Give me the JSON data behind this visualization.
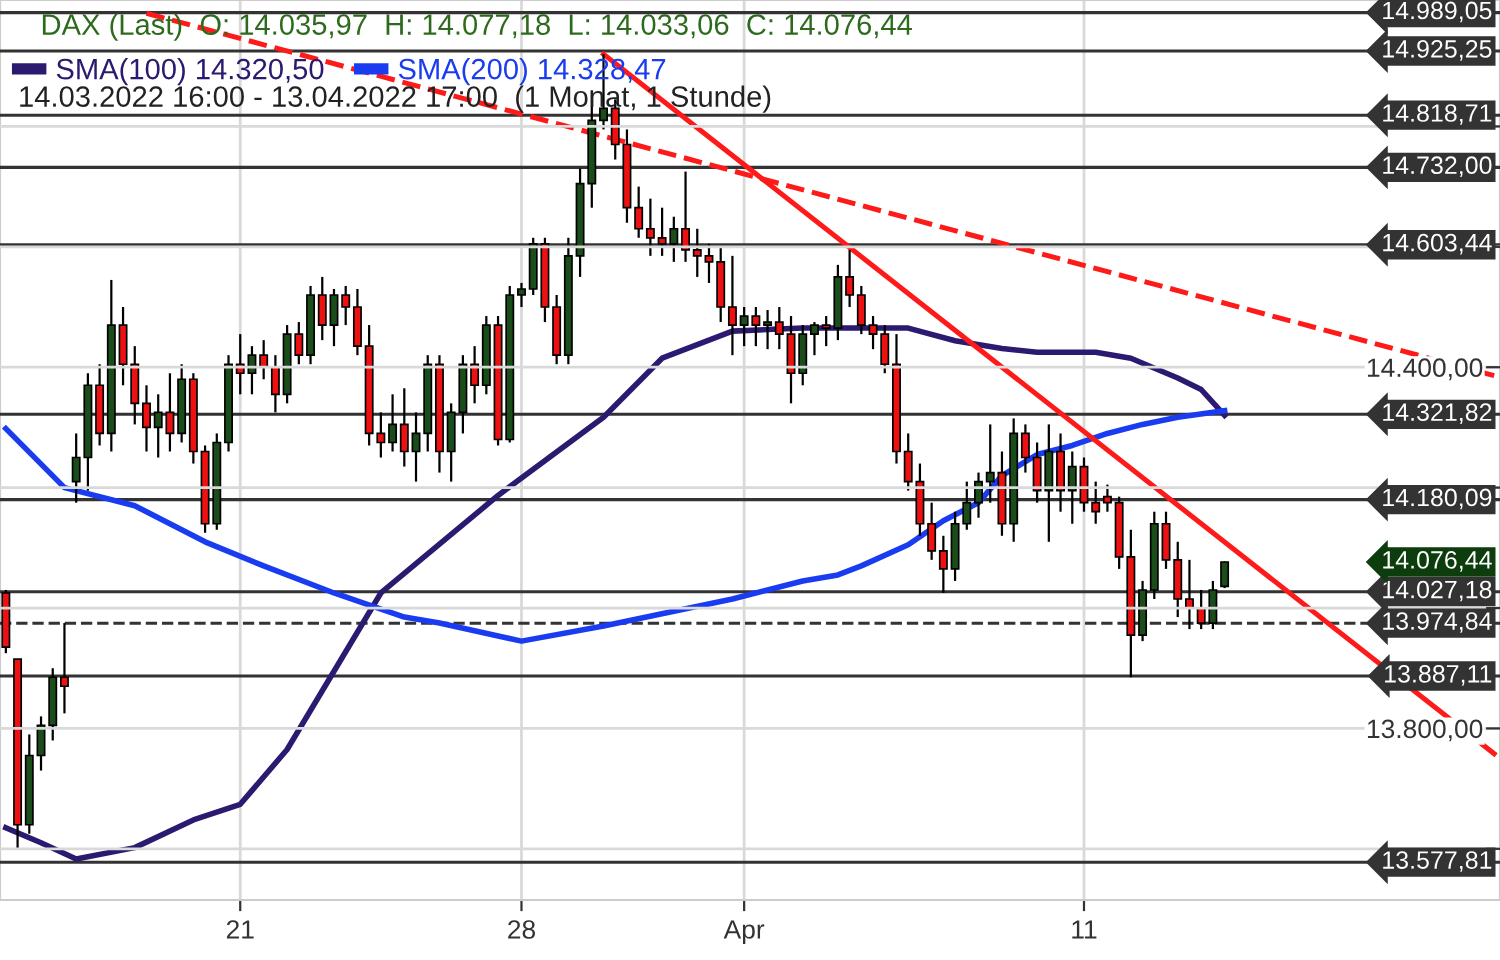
{
  "chart_data": {
    "type": "candlestick",
    "title": "DAX (Last)  O: 14.035,97  H: 14.077,18  L: 14.033,06  C: 14.076,44",
    "subtitle": "14.03.2022 16:00 - 13.04.2022 17:00  (1 Monat, 1 Stunde)",
    "colors": [
      "#ee1111",
      "#ee1111",
      "#1b4d1b",
      "#1b4d1b",
      "#1b4d1b",
      "#ee1111",
      "#1b4d1b",
      "#1b4d1b",
      "#ee1111",
      "#1b4d1b",
      "#ee1111",
      "#ee1111",
      "#ee1111",
      "#1b4d1b",
      "#ee1111",
      "#1b4d1b",
      "#ee1111",
      "#ee1111",
      "#1b4d1b",
      "#1b4d1b",
      "#ee1111",
      "#1b4d1b",
      "#ee1111",
      "#ee1111",
      "#1b4d1b",
      "#ee1111",
      "#1b4d1b",
      "#ee1111",
      "#1b4d1b",
      "#ee1111",
      "#ee1111",
      "#ee1111",
      "#ee1111",
      "#1b4d1b",
      "#ee1111",
      "#1b4d1b",
      "#1b4d1b",
      "#ee1111",
      "#1b4d1b",
      "#1b4d1b",
      "#ee1111",
      "#1b4d1b",
      "#ee1111",
      "#1b4d1b",
      "#1b4d1b",
      "#1b4d1b",
      "#ee1111",
      "#ee1111",
      "#1b4d1b",
      "#1b4d1b",
      "#1b4d1b",
      "#1b4d1b",
      "#ee1111",
      "#ee1111",
      "#ee1111",
      "#ee1111",
      "#ee1111",
      "#1b4d1b",
      "#ee1111",
      "#ee1111",
      "#ee1111",
      "#ee1111",
      "#ee1111",
      "#1b4d1b",
      "#ee1111",
      "#1b4d1b",
      "#ee1111",
      "#ee1111",
      "#1b4d1b",
      "#1b4d1b",
      "#ee1111",
      "#1b4d1b",
      "#ee1111",
      "#ee1111",
      "#ee1111",
      "#ee1111",
      "#ee1111",
      "#ee1111",
      "#ee1111",
      "#ee1111",
      "#ee1111",
      "#1b4d1b",
      "#1b4d1b",
      "#1b4d1b",
      "#1b4d1b",
      "#ee1111",
      "#1b4d1b",
      "#ee1111",
      "#ee1111",
      "#1b4d1b",
      "#ee1111",
      "#1b4d1b",
      "#ee1111",
      "#ee1111",
      "#ee1111",
      "#ee1111",
      "#ee1111",
      "#1b4d1b",
      "#1b4d1b",
      "#ee1111",
      "#ee1111",
      "#ee1111",
      "#ee1111",
      "#1b4d1b",
      "#1b4d1b",
      null,
      null,
      null,
      null,
      null,
      null,
      null,
      null,
      null,
      null,
      null,
      null,
      null,
      null,
      null,
      null,
      null,
      null,
      null,
      null,
      null,
      null,
      null
    ],
    "categories": [
      null,
      null,
      null,
      null,
      null,
      null,
      null,
      null,
      null,
      null,
      null,
      null,
      null,
      null,
      null,
      null,
      null,
      null,
      null,
      null,
      "21",
      null,
      null,
      null,
      null,
      null,
      null,
      null,
      null,
      null,
      null,
      null,
      null,
      null,
      null,
      null,
      null,
      null,
      null,
      null,
      null,
      null,
      null,
      null,
      "28",
      null,
      null,
      null,
      null,
      null,
      null,
      null,
      null,
      null,
      null,
      null,
      null,
      null,
      null,
      null,
      null,
      null,
      null,
      "Apr",
      null,
      null,
      null,
      null,
      null,
      null,
      null,
      null,
      null,
      null,
      null,
      null,
      null,
      null,
      null,
      null,
      null,
      null,
      null,
      null,
      null,
      null,
      null,
      null,
      null,
      null,
      null,
      null,
      "11",
      null,
      null,
      null,
      null,
      null,
      null,
      null,
      null,
      null,
      null,
      null,
      null,
      null,
      null,
      null,
      null,
      null,
      null,
      null,
      null,
      null,
      null,
      null,
      null,
      null,
      null,
      null,
      null,
      null,
      null,
      null,
      null,
      null,
      null,
      null
    ],
    "ohlc": [
      [
        14025,
        14030,
        13925,
        13935
      ],
      [
        13915,
        13915,
        13600,
        13640
      ],
      [
        13640,
        13790,
        13625,
        13755
      ],
      [
        13755,
        13820,
        13730,
        13805
      ],
      [
        13805,
        13900,
        13780,
        13885
      ],
      [
        13885,
        13975,
        13825,
        13870
      ],
      [
        14210,
        14290,
        14175,
        14250
      ],
      [
        14250,
        14390,
        14195,
        14370
      ],
      [
        14370,
        14405,
        14270,
        14290
      ],
      [
        14290,
        14545,
        14260,
        14470
      ],
      [
        14470,
        14500,
        14370,
        14405
      ],
      [
        14405,
        14435,
        14305,
        14340
      ],
      [
        14340,
        14370,
        14260,
        14300
      ],
      [
        14300,
        14355,
        14250,
        14325
      ],
      [
        14325,
        14390,
        14260,
        14290
      ],
      [
        14290,
        14405,
        14275,
        14380
      ],
      [
        14380,
        14390,
        14240,
        14260
      ],
      [
        14260,
        14270,
        14125,
        14140
      ],
      [
        14140,
        14290,
        14130,
        14275
      ],
      [
        14275,
        14420,
        14260,
        14405
      ],
      [
        14405,
        14455,
        14355,
        14390
      ],
      [
        14390,
        14435,
        14355,
        14420
      ],
      [
        14420,
        14445,
        14380,
        14400
      ],
      [
        14400,
        14420,
        14325,
        14355
      ],
      [
        14355,
        14470,
        14340,
        14455
      ],
      [
        14455,
        14475,
        14405,
        14420
      ],
      [
        14420,
        14535,
        14405,
        14520
      ],
      [
        14520,
        14550,
        14445,
        14470
      ],
      [
        14470,
        14530,
        14435,
        14520
      ],
      [
        14520,
        14535,
        14470,
        14500
      ],
      [
        14500,
        14530,
        14420,
        14435
      ],
      [
        14435,
        14470,
        14270,
        14290
      ],
      [
        14290,
        14325,
        14250,
        14275
      ],
      [
        14275,
        14355,
        14260,
        14305
      ],
      [
        14305,
        14365,
        14235,
        14260
      ],
      [
        14260,
        14325,
        14210,
        14290
      ],
      [
        14290,
        14420,
        14260,
        14405
      ],
      [
        14405,
        14420,
        14225,
        14260
      ],
      [
        14260,
        14340,
        14210,
        14325
      ],
      [
        14325,
        14420,
        14290,
        14405
      ],
      [
        14405,
        14435,
        14340,
        14370
      ],
      [
        14370,
        14485,
        14355,
        14470
      ],
      [
        14470,
        14485,
        14270,
        14280
      ],
      [
        14280,
        14535,
        14275,
        14520
      ],
      [
        14520,
        14540,
        14500,
        14530
      ],
      [
        14530,
        14615,
        14520,
        14605
      ],
      [
        14605,
        14615,
        14475,
        14500
      ],
      [
        14500,
        14520,
        14405,
        14420
      ],
      [
        14420,
        14615,
        14405,
        14585
      ],
      [
        14585,
        14730,
        14550,
        14705
      ],
      [
        14705,
        14860,
        14665,
        14810
      ],
      [
        14810,
        14920,
        14795,
        14830
      ],
      [
        14830,
        14845,
        14745,
        14770
      ],
      [
        14770,
        14795,
        14640,
        14665
      ],
      [
        14665,
        14700,
        14615,
        14630
      ],
      [
        14630,
        14680,
        14585,
        14615
      ],
      [
        14615,
        14665,
        14585,
        14605
      ],
      [
        14605,
        14650,
        14575,
        14630
      ],
      [
        14630,
        14725,
        14575,
        14595
      ],
      [
        14595,
        14630,
        14550,
        14585
      ],
      [
        14585,
        14605,
        14540,
        14575
      ],
      [
        14575,
        14600,
        14475,
        14500
      ],
      [
        14500,
        14585,
        14420,
        14470
      ],
      [
        14470,
        14500,
        14435,
        14485
      ],
      [
        14485,
        14500,
        14435,
        14470
      ],
      [
        14470,
        14495,
        14430,
        14475
      ],
      [
        14475,
        14500,
        14430,
        14455
      ],
      [
        14455,
        14485,
        14340,
        14390
      ],
      [
        14390,
        14470,
        14370,
        14455
      ],
      [
        14455,
        14475,
        14420,
        14470
      ],
      [
        14470,
        14485,
        14435,
        14465
      ],
      [
        14465,
        14570,
        14445,
        14550
      ],
      [
        14550,
        14595,
        14500,
        14520
      ],
      [
        14520,
        14535,
        14455,
        14470
      ],
      [
        14470,
        14485,
        14430,
        14455
      ],
      [
        14455,
        14470,
        14390,
        14405
      ],
      [
        14405,
        14455,
        14240,
        14260
      ],
      [
        14260,
        14290,
        14195,
        14210
      ],
      [
        14210,
        14240,
        14120,
        14140
      ],
      [
        14140,
        14175,
        14080,
        14095
      ],
      [
        14095,
        14120,
        14025,
        14065
      ],
      [
        14065,
        14160,
        14045,
        14140
      ],
      [
        14140,
        14210,
        14130,
        14175
      ],
      [
        14175,
        14225,
        14150,
        14210
      ],
      [
        14210,
        14305,
        14175,
        14225
      ],
      [
        14225,
        14260,
        14120,
        14140
      ],
      [
        14140,
        14315,
        14110,
        14290
      ],
      [
        14290,
        14305,
        14225,
        14250
      ],
      [
        14250,
        14275,
        14175,
        14195
      ],
      [
        14195,
        14305,
        14110,
        14260
      ],
      [
        14260,
        14290,
        14160,
        14195
      ],
      [
        14195,
        14260,
        14140,
        14235
      ],
      [
        14235,
        14250,
        14160,
        14175
      ],
      [
        14175,
        14210,
        14140,
        14160
      ],
      [
        14185,
        14205,
        14160,
        14175
      ],
      [
        14175,
        14185,
        14065,
        14085
      ],
      [
        14085,
        14130,
        13885,
        13955
      ],
      [
        13955,
        14045,
        13945,
        14030
      ],
      [
        14030,
        14160,
        14015,
        14140
      ],
      [
        14140,
        14160,
        14065,
        14080
      ],
      [
        14080,
        14110,
        13985,
        14015
      ],
      [
        14015,
        14080,
        13965,
        14000
      ],
      [
        14000,
        14030,
        13965,
        13975
      ],
      [
        13975,
        14045,
        13965,
        14030
      ],
      [
        14035.97,
        14077.18,
        14033.06,
        14076.44
      ],
      null,
      null,
      null,
      null,
      null,
      null,
      null,
      null,
      null,
      null,
      null,
      null,
      null,
      null,
      null,
      null,
      null,
      null,
      null,
      null,
      null,
      null,
      null
    ],
    "series": [
      {
        "type": "line",
        "name": "SMA(100) 14.320,50",
        "color": "#2b1a70",
        "values": [
          13635,
          null,
          null,
          13610,
          null,
          null,
          13583,
          null,
          null,
          null,
          null,
          13602,
          null,
          null,
          null,
          null,
          13648,
          null,
          null,
          null,
          13674,
          null,
          null,
          null,
          13765,
          null,
          null,
          null,
          13895,
          null,
          null,
          null,
          14025,
          null,
          null,
          null,
          null,
          14106,
          null,
          null,
          null,
          null,
          14187,
          null,
          null,
          null,
          null,
          null,
          null,
          null,
          null,
          14317,
          null,
          null,
          null,
          null,
          14415,
          null,
          null,
          null,
          null,
          null,
          14460,
          null,
          null,
          null,
          null,
          null,
          14465,
          null,
          null,
          null,
          null,
          null,
          null,
          14465,
          null,
          14465,
          null,
          null,
          null,
          14444,
          null,
          null,
          null,
          14431,
          null,
          null,
          14425,
          null,
          null,
          null,
          null,
          14425,
          null,
          null,
          14415,
          null,
          null,
          null,
          14382,
          null,
          14363,
          null,
          14320,
          null,
          null,
          null,
          null,
          null,
          null,
          null,
          null,
          null,
          null,
          null,
          null,
          null,
          null,
          null,
          null,
          null,
          null,
          null,
          null,
          null,
          null,
          null
        ]
      },
      {
        "type": "line",
        "name": "SMA(200) 14.328,47",
        "color": "#1a3cf0",
        "values": [
          14298,
          null,
          null,
          null,
          null,
          14200,
          null,
          null,
          null,
          null,
          null,
          14170,
          null,
          null,
          null,
          null,
          null,
          14110,
          null,
          null,
          null,
          null,
          14070,
          null,
          null,
          null,
          null,
          null,
          14025,
          null,
          null,
          null,
          null,
          null,
          13985,
          null,
          null,
          13975,
          null,
          null,
          null,
          null,
          null,
          null,
          13945,
          null,
          null,
          null,
          null,
          null,
          null,
          13970,
          null,
          null,
          null,
          null,
          null,
          null,
          null,
          null,
          null,
          null,
          14015,
          null,
          null,
          null,
          null,
          null,
          14045,
          null,
          null,
          14055,
          null,
          14070,
          null,
          null,
          null,
          14105,
          null,
          null,
          14145,
          null,
          null,
          14175,
          null,
          14220,
          null,
          null,
          14255,
          null,
          null,
          14270,
          null,
          null,
          14290,
          null,
          null,
          14305,
          null,
          null,
          14317,
          null,
          null,
          null,
          14328,
          null,
          null,
          null,
          null,
          null,
          null,
          null,
          null,
          null,
          null,
          null,
          null,
          null,
          null,
          null,
          null,
          null,
          null,
          null,
          null,
          null,
          null,
          null
        ]
      },
      {
        "type": "line",
        "color": "#ff1a1a",
        "line_style": "solid",
        "values": [
          null,
          null,
          null,
          null,
          null,
          null,
          null,
          null,
          null,
          null,
          null,
          null,
          null,
          null,
          null,
          null,
          null,
          null,
          null,
          null,
          null,
          null,
          null,
          null,
          null,
          null,
          null,
          null,
          null,
          null,
          null,
          null,
          null,
          null,
          null,
          null,
          null,
          null,
          null,
          null,
          null,
          null,
          null,
          null,
          null,
          null,
          null,
          null,
          null,
          null,
          null,
          14920,
          null,
          null,
          null,
          null,
          null,
          null,
          null,
          null,
          null,
          null,
          null,
          null,
          null,
          null,
          null,
          null,
          null,
          null,
          null,
          null,
          null,
          null,
          null,
          null,
          null,
          null,
          null,
          null,
          null,
          null,
          null,
          null,
          null,
          null,
          null,
          null,
          null,
          null,
          null,
          null,
          null,
          null,
          null,
          null,
          null,
          null,
          null,
          null,
          null,
          null,
          null,
          null,
          null,
          null,
          null,
          null,
          null,
          null,
          null,
          null,
          null,
          null,
          null,
          null,
          null,
          null,
          null,
          null,
          null,
          null,
          null,
          null,
          null,
          null,
          null,
          13758
        ]
      },
      {
        "type": "line",
        "color": "#ff1a1a",
        "line_style": "dashed",
        "values": [
          null,
          null,
          null,
          null,
          null,
          null,
          null,
          null,
          null,
          null,
          null,
          null,
          14988,
          null,
          null,
          null,
          null,
          null,
          null,
          null,
          null,
          null,
          null,
          null,
          null,
          null,
          null,
          null,
          null,
          null,
          null,
          null,
          null,
          null,
          null,
          null,
          null,
          null,
          null,
          null,
          null,
          null,
          null,
          null,
          null,
          null,
          null,
          null,
          null,
          null,
          null,
          null,
          null,
          null,
          null,
          null,
          null,
          null,
          null,
          null,
          null,
          null,
          null,
          null,
          null,
          null,
          null,
          null,
          null,
          null,
          null,
          null,
          null,
          null,
          null,
          null,
          null,
          null,
          null,
          null,
          null,
          null,
          null,
          null,
          null,
          null,
          null,
          null,
          null,
          null,
          null,
          null,
          null,
          null,
          null,
          null,
          null,
          null,
          null,
          null,
          null,
          null,
          null,
          null,
          null,
          null,
          null,
          null,
          null,
          null,
          null,
          null,
          null,
          null,
          null,
          null,
          null,
          null,
          null,
          null,
          null,
          null,
          null,
          null,
          null,
          null,
          null,
          14386
        ]
      }
    ],
    "ylim": [
      13515,
      15010
    ],
    "annotations": [
      "14.076,44"
    ],
    "yticks": [
      {
        "value": 13600,
        "label": null
      },
      {
        "value": 13800,
        "label": "13.800,00"
      },
      {
        "value": 14000,
        "label": null
      },
      {
        "value": 14200,
        "label": null
      },
      {
        "value": 14400,
        "label": "14.400,00"
      },
      {
        "value": 14600,
        "label": null
      },
      {
        "value": 14800,
        "label": null
      }
    ],
    "ref_lines": [
      {
        "axis": "y",
        "value": 14989.05,
        "label": "14.989,05",
        "color": "#333333",
        "line_style": "solid"
      },
      {
        "axis": "y",
        "value": 14925.25,
        "label": "14.925,25",
        "color": "#333333",
        "line_style": "solid"
      },
      {
        "axis": "y",
        "value": 14818.71,
        "label": "14.818,71",
        "color": "#333333",
        "line_style": "solid"
      },
      {
        "axis": "y",
        "value": 14732.0,
        "label": "14.732,00",
        "color": "#333333",
        "line_style": "solid"
      },
      {
        "axis": "y",
        "value": 14603.44,
        "label": "14.603,44",
        "color": "#333333",
        "line_style": "solid"
      },
      {
        "axis": "y",
        "value": 14321.82,
        "label": "14.321,82",
        "color": "#333333",
        "line_style": "solid"
      },
      {
        "axis": "y",
        "value": 14180.09,
        "label": "14.180,09",
        "color": "#333333",
        "line_style": "solid"
      },
      {
        "axis": "y",
        "value": 14027.18,
        "label": "14.027,18",
        "color": "#333333",
        "line_style": "solid"
      },
      {
        "axis": "y",
        "value": 13974.84,
        "label": "13.974,84",
        "color": "#333333",
        "line_style": "dashed"
      },
      {
        "axis": "y",
        "value": 13887.11,
        "label": "13.887,11",
        "color": "#333333",
        "line_style": "solid"
      },
      {
        "axis": "y",
        "value": 13577.81,
        "label": "13.577,81",
        "color": "#333333",
        "line_style": "solid"
      }
    ],
    "grid": true,
    "legend": "top left"
  }
}
